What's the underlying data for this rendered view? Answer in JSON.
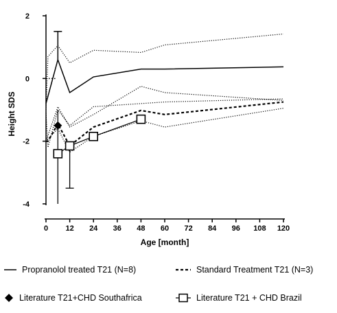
{
  "chart_data": {
    "type": "line",
    "xlabel": "Age [month]",
    "ylabel": "Height SDS",
    "xlim": [
      0,
      120
    ],
    "ylim": [
      -4,
      2
    ],
    "xticks": [
      0,
      12,
      24,
      36,
      48,
      60,
      72,
      84,
      96,
      108,
      120
    ],
    "yticks": [
      -4,
      -2,
      0,
      2
    ],
    "grid": false,
    "legend_position": "bottom",
    "series": [
      {
        "name": "Propranolol treated T21 (N=8)",
        "style": "solid",
        "mean": {
          "x": [
            0,
            6,
            12,
            24,
            48,
            60,
            120
          ],
          "y": [
            -0.8,
            0.6,
            -0.45,
            0.05,
            0.3,
            0.3,
            0.37
          ]
        },
        "upper": {
          "x": [
            0,
            1,
            6,
            12,
            24,
            48,
            60,
            120
          ],
          "y": [
            -1.0,
            0.7,
            1.05,
            0.5,
            0.9,
            0.83,
            1.07,
            1.42
          ]
        },
        "lower": {
          "x": [
            0,
            1,
            6,
            12,
            24,
            48,
            60,
            120
          ],
          "y": [
            -1.1,
            -2.2,
            -1.0,
            -1.5,
            -0.9,
            -0.8,
            -0.75,
            -0.65
          ]
        },
        "errorbar": {
          "x": 6,
          "low": 0.6,
          "high": 1.5
        }
      },
      {
        "name": "Standard Treatment T21 (N=3)",
        "style": "dashed",
        "mean": {
          "x": [
            0,
            1,
            6,
            12,
            24,
            48,
            60,
            120
          ],
          "y": [
            -2.0,
            -2.0,
            -1.45,
            -2.15,
            -1.55,
            -1.02,
            -1.15,
            -0.75
          ]
        },
        "upper": {
          "x": [
            0,
            6,
            12,
            24,
            48,
            60,
            120
          ],
          "y": [
            -2.0,
            -0.9,
            -1.55,
            -1.15,
            -0.25,
            -0.45,
            -0.7
          ]
        },
        "lower": {
          "x": [
            0,
            6,
            12,
            24,
            48,
            60,
            120
          ],
          "y": [
            -2.0,
            -1.6,
            -2.35,
            -1.85,
            -1.35,
            -1.55,
            -0.95
          ]
        }
      },
      {
        "name": "Literature T21+CHD Southafrica",
        "marker": "diamond",
        "points": [
          {
            "x": 6,
            "y": -1.5,
            "low": -4.0,
            "high": -1.0
          }
        ]
      },
      {
        "name": "Literature T21 + CHD Brazil",
        "marker": "square",
        "points": [
          {
            "x": 6,
            "y": -2.4
          },
          {
            "x": 12,
            "y": -2.15,
            "low": -3.5,
            "high": -2.15
          },
          {
            "x": 24,
            "y": -1.85
          },
          {
            "x": 48,
            "y": -1.3
          }
        ]
      }
    ],
    "reference_line": {
      "y": 0,
      "x": [
        0,
        5
      ],
      "style": "dotted"
    }
  }
}
